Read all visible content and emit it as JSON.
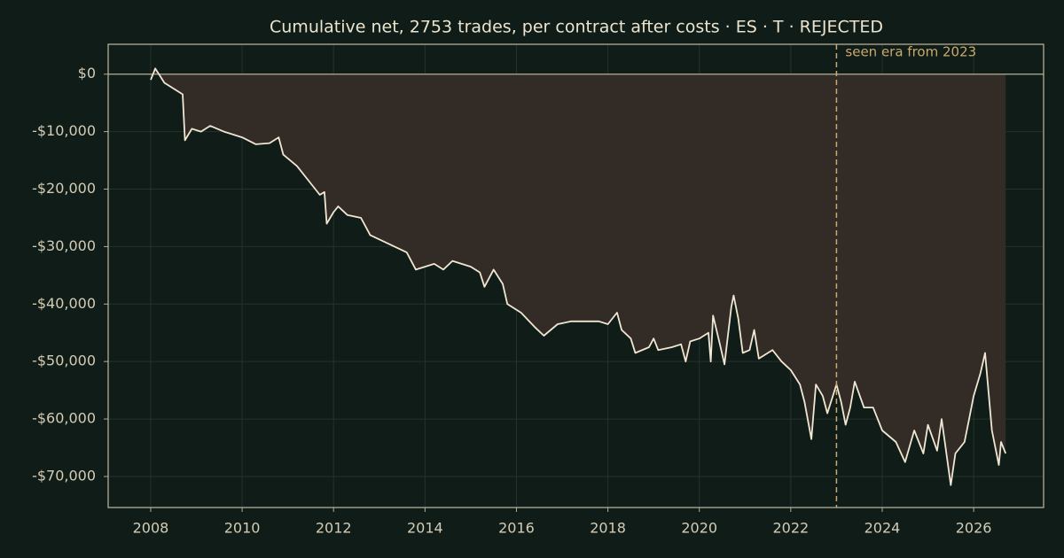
{
  "chart_data": {
    "type": "line",
    "title": "Cumulative net, 2753 trades, per contract after costs  ·  ES · T · REJECTED",
    "annotation": {
      "x": 2023,
      "text": "seen era from 2023"
    },
    "x": [
      2008.0,
      2008.1,
      2008.3,
      2008.5,
      2008.7,
      2008.75,
      2008.9,
      2009.1,
      2009.3,
      2009.6,
      2010.0,
      2010.3,
      2010.6,
      2010.8,
      2010.9,
      2011.2,
      2011.5,
      2011.7,
      2011.8,
      2011.85,
      2012.0,
      2012.1,
      2012.3,
      2012.6,
      2012.8,
      2013.2,
      2013.6,
      2013.8,
      2014.2,
      2014.4,
      2014.6,
      2015.0,
      2015.2,
      2015.3,
      2015.5,
      2015.7,
      2015.8,
      2016.1,
      2016.4,
      2016.6,
      2016.9,
      2017.2,
      2017.8,
      2018.0,
      2018.2,
      2018.3,
      2018.5,
      2018.6,
      2018.9,
      2019.0,
      2019.1,
      2019.4,
      2019.6,
      2019.7,
      2019.8,
      2020.0,
      2020.2,
      2020.25,
      2020.3,
      2020.45,
      2020.55,
      2020.7,
      2020.75,
      2020.85,
      2020.95,
      2021.1,
      2021.2,
      2021.3,
      2021.6,
      2021.8,
      2022.0,
      2022.2,
      2022.3,
      2022.45,
      2022.55,
      2022.7,
      2022.8,
      2023.0,
      2023.1,
      2023.2,
      2023.3,
      2023.4,
      2023.6,
      2023.8,
      2024.0,
      2024.3,
      2024.5,
      2024.7,
      2024.9,
      2025.0,
      2025.2,
      2025.3,
      2025.5,
      2025.6,
      2025.8,
      2025.9,
      2026.0,
      2026.15,
      2026.25,
      2026.4,
      2026.55,
      2026.6,
      2026.7
    ],
    "series": [
      {
        "name": "Cumulative net",
        "color": "#f0e6d2",
        "fill": "#332b26",
        "values": [
          -1000,
          1000,
          -1500,
          -2500,
          -3500,
          -11500,
          -9500,
          -10000,
          -9000,
          -10000,
          -11000,
          -12200,
          -12000,
          -11000,
          -14000,
          -16000,
          -19000,
          -21000,
          -20500,
          -26000,
          -24000,
          -23000,
          -24500,
          -25000,
          -28000,
          -29500,
          -31000,
          -34000,
          -33000,
          -34000,
          -32500,
          -33500,
          -34500,
          -37000,
          -34000,
          -36500,
          -40000,
          -41500,
          -44000,
          -45500,
          -43500,
          -43000,
          -43000,
          -43500,
          -41500,
          -44500,
          -46000,
          -48500,
          -47500,
          -46000,
          -48000,
          -47500,
          -47000,
          -50000,
          -46500,
          -46000,
          -45000,
          -50000,
          -42000,
          -47000,
          -50500,
          -40500,
          -38500,
          -42500,
          -48500,
          -48000,
          -44500,
          -49500,
          -48000,
          -50000,
          -51500,
          -54000,
          -57000,
          -63500,
          -54000,
          -56000,
          -59000,
          -54000,
          -57000,
          -61000,
          -58000,
          -53500,
          -58000,
          -58000,
          -62000,
          -64000,
          -67500,
          -62000,
          -66000,
          -61000,
          -65500,
          -60000,
          -71500,
          -66000,
          -64000,
          -60000,
          -56000,
          -52000,
          -48500,
          -62000,
          -68000,
          -64000,
          -66000
        ]
      }
    ],
    "xlim": [
      2007.07,
      2027.53
    ],
    "xticks": [
      2008,
      2010,
      2012,
      2014,
      2016,
      2018,
      2020,
      2022,
      2024,
      2026
    ],
    "ylim": [
      -75400,
      5200
    ],
    "yticks": [
      {
        "value": 0,
        "label": "$0"
      },
      {
        "value": -10000,
        "label": "-$10,000"
      },
      {
        "value": -20000,
        "label": "-$20,000"
      },
      {
        "value": -30000,
        "label": "-$30,000"
      },
      {
        "value": -40000,
        "label": "-$40,000"
      },
      {
        "value": -50000,
        "label": "-$50,000"
      },
      {
        "value": -60000,
        "label": "-$60,000"
      },
      {
        "value": -70000,
        "label": "-$70,000"
      }
    ],
    "grid": true
  }
}
